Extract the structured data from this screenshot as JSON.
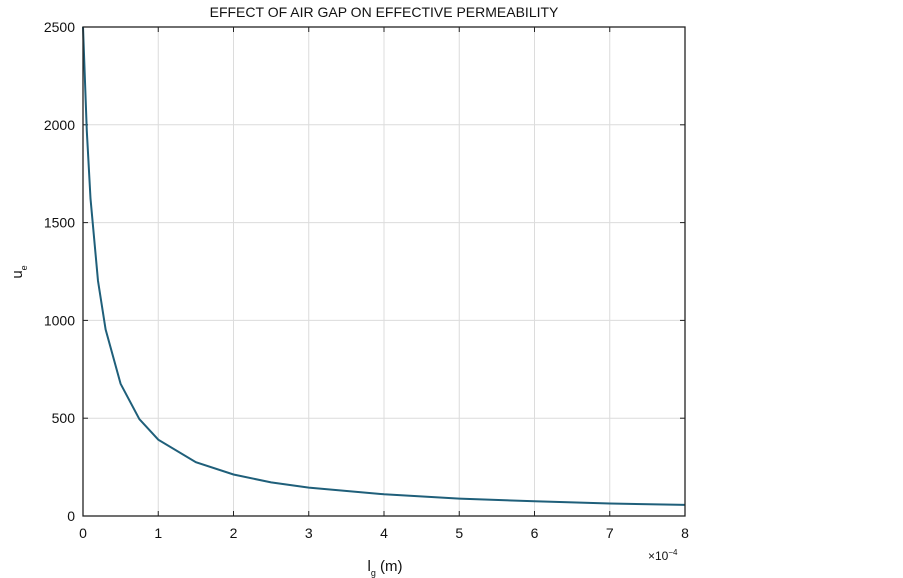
{
  "chart_data": {
    "type": "line",
    "title": "EFFECT OF AIR GAP ON EFFECTIVE PERMEABILITY",
    "xlabel_main": "l",
    "xlabel_sub": "g",
    "xlabel_unit": " (m)",
    "ylabel_main": "u",
    "ylabel_sub": "e",
    "x_multiplier": "×10",
    "x_multiplier_exp": "−4",
    "xlim": [
      0,
      8
    ],
    "ylim": [
      0,
      2500
    ],
    "xticks": [
      "0",
      "1",
      "2",
      "3",
      "4",
      "5",
      "6",
      "7",
      "8"
    ],
    "yticks": [
      "0",
      "500",
      "1000",
      "1500",
      "2000",
      "2500"
    ],
    "grid": true,
    "line_color": "#1f5f7a",
    "series": [
      {
        "name": "ue",
        "x": [
          0,
          0.05,
          0.1,
          0.2,
          0.3,
          0.5,
          0.75,
          1,
          1.5,
          2,
          2.5,
          3,
          4,
          5,
          6,
          7,
          8
        ],
        "y": [
          2500,
          1969,
          1623,
          1202,
          954,
          676,
          495,
          390,
          275,
          212,
          172,
          145,
          111,
          89,
          75,
          64,
          57
        ]
      }
    ]
  }
}
